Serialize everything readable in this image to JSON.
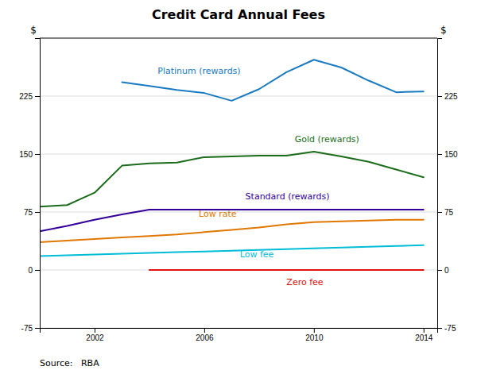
{
  "chart_data": {
    "type": "line",
    "title": "Credit Card Annual Fees",
    "ylabel": "$",
    "y2label": "$",
    "source": "Source:   RBA",
    "xlim": [
      2000,
      2014.5
    ],
    "xticks": [
      2002,
      2006,
      2010,
      2014
    ],
    "ylim": [
      -75,
      300
    ],
    "yticks": [
      -75,
      0,
      75,
      150,
      225
    ],
    "y2lim": [
      -75,
      300
    ],
    "y2ticks": [
      -75,
      0,
      75,
      150,
      225
    ],
    "grid": true,
    "series": [
      {
        "color": "#1a7abf",
        "x": [
          2003,
          2004,
          2005,
          2006,
          2007,
          2008,
          2009,
          2010,
          2011,
          2012,
          2013,
          2014
        ],
        "values": [
          243,
          238,
          233,
          229,
          219,
          234,
          256,
          272,
          262,
          245,
          230,
          231
        ]
      },
      {
        "color": "#1a6b1a",
        "x": [
          2000,
          2001,
          2002,
          2003,
          2004,
          2005,
          2006,
          2007,
          2008,
          2009,
          2010,
          2011,
          2012,
          2013,
          2014
        ],
        "values": [
          82,
          84,
          100,
          135,
          138,
          139,
          146,
          147,
          148,
          148,
          153,
          147,
          140,
          130,
          120
        ]
      },
      {
        "color": "#330099",
        "x": [
          2000,
          2001,
          2002,
          2003,
          2004,
          2005,
          2006,
          2007,
          2008,
          2009,
          2010,
          2011,
          2012,
          2013,
          2014
        ],
        "values": [
          50,
          57,
          65,
          72,
          78,
          78,
          78,
          78,
          78,
          78,
          78,
          78,
          78,
          78,
          78
        ]
      },
      {
        "color": "#e07800",
        "x": [
          2000,
          2001,
          2002,
          2003,
          2004,
          2005,
          2006,
          2007,
          2008,
          2009,
          2010,
          2011,
          2012,
          2013,
          2014
        ],
        "values": [
          36,
          38,
          40,
          42,
          44,
          46,
          49,
          52,
          55,
          59,
          62,
          63,
          64,
          65,
          65
        ]
      },
      {
        "color": "#00bcd4",
        "x": [
          2000,
          2001,
          2002,
          2003,
          2004,
          2005,
          2006,
          2007,
          2008,
          2009,
          2010,
          2011,
          2012,
          2013,
          2014
        ],
        "values": [
          18,
          19,
          20,
          21,
          22,
          23,
          24,
          25,
          26,
          27,
          28,
          29,
          30,
          31,
          32
        ]
      },
      {
        "color": "#dd1111",
        "x": [
          2004,
          2005,
          2006,
          2007,
          2008,
          2009,
          2010,
          2011,
          2012,
          2013,
          2014
        ],
        "values": [
          0,
          0,
          0,
          0,
          0,
          0,
          0,
          0,
          0,
          0,
          0
        ]
      }
    ],
    "annotations": [
      {
        "text": "Platinum (rewards)",
        "x": 2004.3,
        "y": 252,
        "color": "#1a7abf"
      },
      {
        "text": "Gold (rewards)",
        "x": 2009.3,
        "y": 163,
        "color": "#1a6b1a"
      },
      {
        "text": "Standard (rewards)",
        "x": 2007.5,
        "y": 89,
        "color": "#330099"
      },
      {
        "text": "Low rate",
        "x": 2005.8,
        "y": 67,
        "color": "#e07800"
      },
      {
        "text": "Low fee",
        "x": 2007.3,
        "y": 14,
        "color": "#00bcd4"
      },
      {
        "text": "Zero fee",
        "x": 2009.0,
        "y": -22,
        "color": "#dd1111"
      }
    ]
  }
}
